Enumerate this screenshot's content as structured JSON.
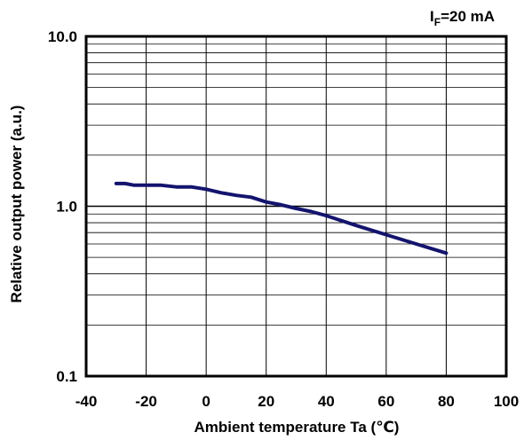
{
  "chart_data": {
    "type": "line",
    "condition": {
      "symbol": "I",
      "subscript": "F",
      "value": "=20 mA"
    },
    "xlabel": "Ambient temperature Ta (℃)",
    "ylabel": "Relative output power (a.u.)",
    "xlim": [
      -40,
      100
    ],
    "ylim": [
      0.1,
      10.0
    ],
    "yscale": "log",
    "grid": true,
    "xticks": [
      -40,
      -20,
      0,
      20,
      40,
      60,
      80,
      100
    ],
    "xtick_labels": [
      "-40",
      "-20",
      "0",
      "20",
      "40",
      "60",
      "80",
      "100"
    ],
    "yticks": [
      0.1,
      1.0,
      10.0
    ],
    "ytick_labels": [
      "0.1",
      "1.0",
      "10.0"
    ],
    "series": [
      {
        "color": "#14146e",
        "x": [
          -30,
          -27,
          -24,
          -20,
          -15,
          -10,
          -5,
          0,
          5,
          10,
          15,
          20,
          25,
          30,
          35,
          40,
          50,
          60,
          70,
          80
        ],
        "y": [
          1.36,
          1.36,
          1.33,
          1.33,
          1.33,
          1.3,
          1.3,
          1.26,
          1.2,
          1.16,
          1.13,
          1.06,
          1.02,
          0.97,
          0.93,
          0.88,
          0.77,
          0.68,
          0.6,
          0.53
        ]
      }
    ]
  }
}
